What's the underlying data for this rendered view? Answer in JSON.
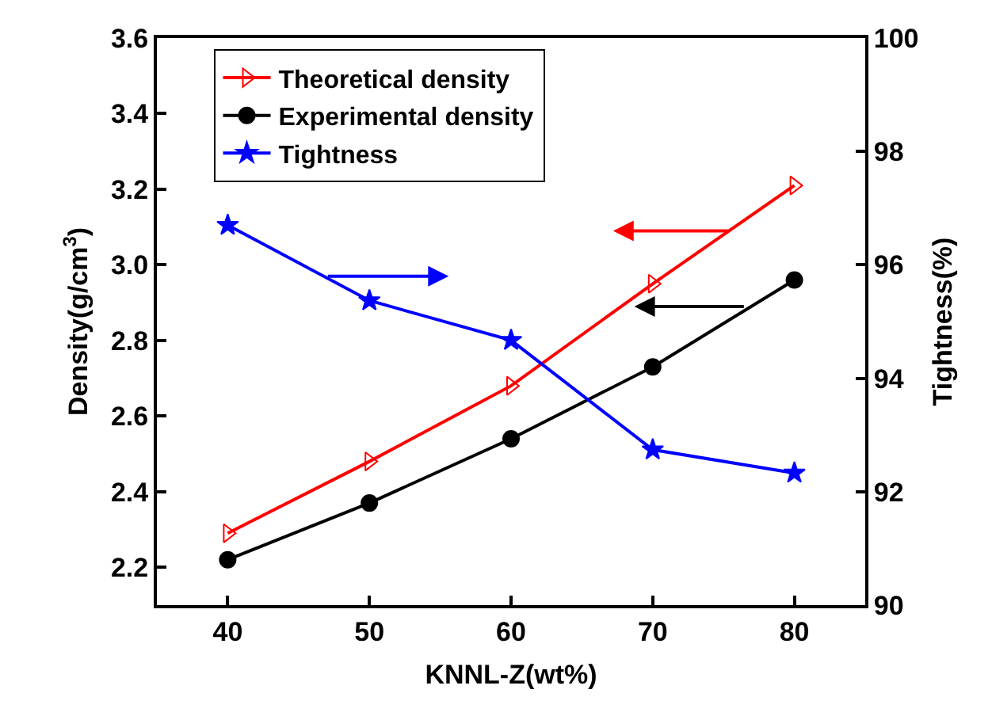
{
  "chart_data": {
    "type": "line",
    "xlabel": "KNNL-Z(wt%)",
    "ylabel": "Density(g/cm$^{3}$)",
    "y2label": "Tightness(%)",
    "x": [
      40,
      50,
      60,
      70,
      80
    ],
    "series": [
      {
        "name": "Theoretical density",
        "color": "#ff0000",
        "marker": "triangle",
        "values": [
          2.29,
          2.48,
          2.68,
          2.95,
          3.21
        ]
      },
      {
        "name": "Experimental density",
        "color": "#000000",
        "marker": "circle",
        "values": [
          2.22,
          2.37,
          2.54,
          2.73,
          2.96
        ]
      },
      {
        "name": "Tightness",
        "color": "#0000ff",
        "marker": "star",
        "axis": "y2",
        "values": [
          96.7,
          95.37,
          94.67,
          92.74,
          92.33
        ]
      }
    ],
    "xlim": [
      35,
      85
    ],
    "xticks": [
      40,
      50,
      60,
      70,
      80
    ],
    "ylim": [
      2.1,
      3.6
    ],
    "yticks": [
      {
        "value": 2.2,
        "label": "2.2"
      },
      {
        "value": 2.4,
        "label": "2.4"
      },
      {
        "value": 2.6,
        "label": "2.6"
      },
      {
        "value": 2.8,
        "label": "2.8"
      },
      {
        "value": 3.0,
        "label": "3.0"
      },
      {
        "value": 3.2,
        "label": "3.2"
      },
      {
        "value": 3.4,
        "label": "3.4"
      },
      {
        "value": 3.6,
        "label": "3.6"
      }
    ],
    "y2lim": [
      90,
      100
    ],
    "y2ticks": [
      90,
      92,
      94,
      96,
      98,
      100
    ],
    "grid": false,
    "legend": "top left",
    "line_style": "solid"
  }
}
